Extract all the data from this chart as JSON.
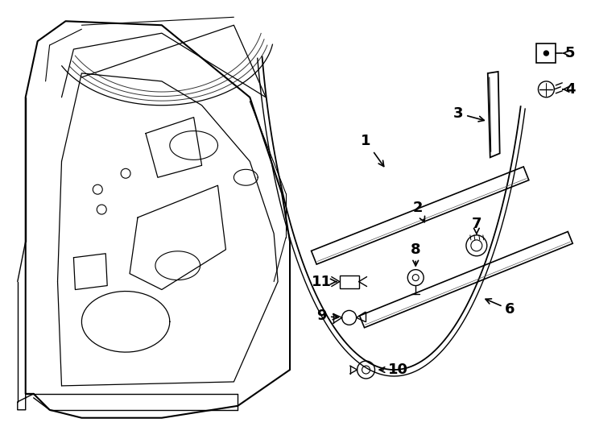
{
  "background_color": "#ffffff",
  "line_color": "#000000",
  "figsize": [
    7.34,
    5.4
  ],
  "dpi": 100
}
